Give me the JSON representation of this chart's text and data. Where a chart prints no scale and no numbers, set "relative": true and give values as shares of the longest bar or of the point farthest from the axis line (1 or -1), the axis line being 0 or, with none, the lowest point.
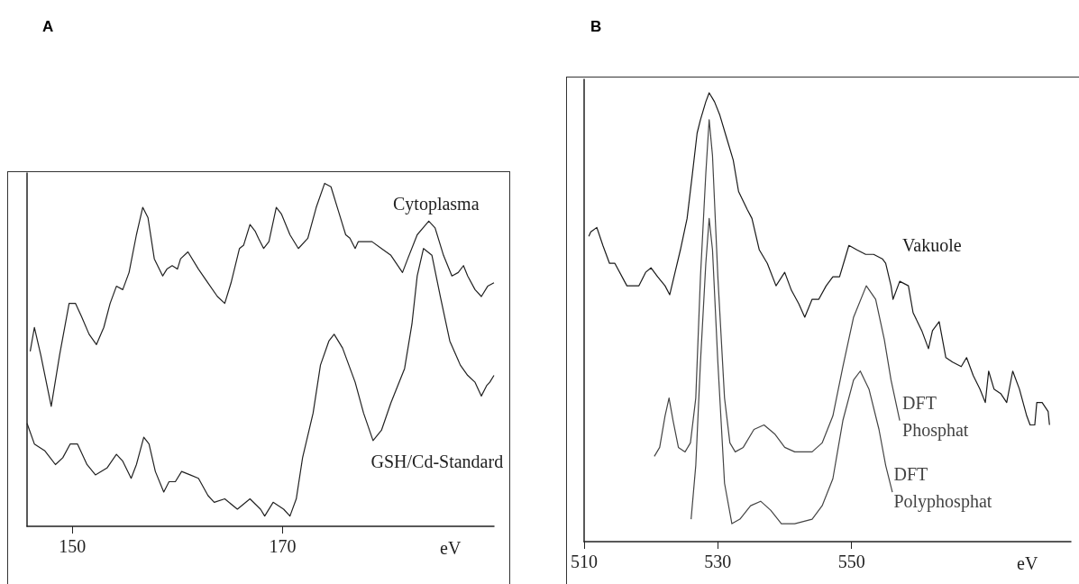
{
  "chart_data": [
    {
      "type": "line",
      "title": "A",
      "xlabel": "eV",
      "relative": true,
      "xlim": [
        145.7,
        190.1
      ],
      "xticks": [
        150,
        170
      ],
      "grid": false,
      "legend": false,
      "marker": "none",
      "series": [
        {
          "name": "Cytoplasma",
          "color": "#222222",
          "x": [
            146.0,
            146.4,
            147.0,
            148.0,
            148.8,
            149.7,
            150.3,
            150.9,
            151.6,
            152.3,
            153.0,
            153.6,
            154.2,
            154.8,
            155.4,
            156.1,
            156.7,
            157.2,
            157.8,
            158.6,
            159.0,
            159.5,
            160.0,
            160.3,
            161.0,
            162.0,
            162.9,
            163.8,
            164.5,
            165.1,
            165.9,
            166.3,
            166.9,
            167.4,
            167.7,
            168.2,
            168.7,
            169.4,
            169.9,
            170.7,
            171.5,
            172.4,
            173.2,
            174.0,
            174.6,
            175.3,
            176.0,
            176.4,
            176.9,
            177.2,
            178.5,
            179.4,
            180.3,
            181.4,
            181.9,
            182.8,
            183.9,
            184.5,
            185.3,
            186.1,
            186.7,
            187.2,
            187.6,
            188.3,
            188.9,
            189.5,
            190.1
          ],
          "values": [
            0.51,
            0.58,
            0.5,
            0.35,
            0.5,
            0.65,
            0.65,
            0.61,
            0.56,
            0.53,
            0.58,
            0.65,
            0.7,
            0.69,
            0.74,
            0.85,
            0.93,
            0.9,
            0.78,
            0.73,
            0.75,
            0.76,
            0.75,
            0.78,
            0.8,
            0.75,
            0.71,
            0.67,
            0.65,
            0.71,
            0.81,
            0.82,
            0.88,
            0.86,
            0.84,
            0.81,
            0.83,
            0.93,
            0.91,
            0.85,
            0.81,
            0.84,
            0.93,
            1.0,
            0.99,
            0.92,
            0.85,
            0.84,
            0.81,
            0.83,
            0.83,
            0.81,
            0.79,
            0.74,
            0.78,
            0.85,
            0.89,
            0.87,
            0.79,
            0.73,
            0.74,
            0.76,
            0.73,
            0.69,
            0.67,
            0.7,
            0.71
          ]
        },
        {
          "name": "GSH/Cd-Standard",
          "color": "#222222",
          "x": [
            145.7,
            146.4,
            147.4,
            148.4,
            149.1,
            149.8,
            150.5,
            151.4,
            152.2,
            153.3,
            154.2,
            154.8,
            155.6,
            156.1,
            156.8,
            157.3,
            157.9,
            158.7,
            159.2,
            159.8,
            160.4,
            161.2,
            162.0,
            162.9,
            163.5,
            164.5,
            165.7,
            166.9,
            167.9,
            168.3,
            169.1,
            170.1,
            170.7,
            171.3,
            171.9,
            172.9,
            173.6,
            174.4,
            174.9,
            175.7,
            176.9,
            177.7,
            178.6,
            179.4,
            180.3,
            181.6,
            182.3,
            182.8,
            183.4,
            184.2,
            185.0,
            185.9,
            186.9,
            187.6,
            188.3,
            188.9,
            189.4,
            189.7,
            190.1
          ],
          "values": [
            0.3,
            0.24,
            0.22,
            0.18,
            0.2,
            0.24,
            0.24,
            0.18,
            0.15,
            0.17,
            0.21,
            0.19,
            0.14,
            0.18,
            0.26,
            0.24,
            0.16,
            0.1,
            0.13,
            0.13,
            0.16,
            0.15,
            0.14,
            0.09,
            0.07,
            0.08,
            0.05,
            0.08,
            0.05,
            0.03,
            0.07,
            0.05,
            0.03,
            0.08,
            0.2,
            0.33,
            0.47,
            0.54,
            0.56,
            0.52,
            0.42,
            0.33,
            0.25,
            0.28,
            0.36,
            0.46,
            0.59,
            0.73,
            0.81,
            0.79,
            0.67,
            0.54,
            0.47,
            0.44,
            0.42,
            0.38,
            0.41,
            0.42,
            0.44
          ]
        }
      ]
    },
    {
      "type": "line",
      "title": "B",
      "xlabel": "eV",
      "relative": true,
      "xlim": [
        510,
        582.8
      ],
      "xticks": [
        510,
        530,
        550
      ],
      "grid": false,
      "legend": false,
      "marker": "none",
      "series": [
        {
          "name": "Vakuole",
          "color": "#1a1a1a",
          "x": [
            510.7,
            511.0,
            511.9,
            512.8,
            513.8,
            514.6,
            516.4,
            518.2,
            519.2,
            520.0,
            521.0,
            522.1,
            522.8,
            523.6,
            524.4,
            525.4,
            526.2,
            526.9,
            527.4,
            528.2,
            528.7,
            529.5,
            530.3,
            531.3,
            532.3,
            533.1,
            534.4,
            535.1,
            536.2,
            537.4,
            538.7,
            540.0,
            541.0,
            542.1,
            543.0,
            544.1,
            545.1,
            546.2,
            547.2,
            548.2,
            549.0,
            549.6,
            550.8,
            552.1,
            553.3,
            554.6,
            555.1,
            555.9,
            556.2,
            557.2,
            558.5,
            559.2,
            560.5,
            561.5,
            562.1,
            563.1,
            564.1,
            565.1,
            566.4,
            567.2,
            568.2,
            569.2,
            570.0,
            570.5,
            571.3,
            572.3,
            573.2,
            574.1,
            575.1,
            576.2,
            576.7,
            577.4,
            577.7,
            578.5,
            579.4,
            579.6
          ],
          "values": [
            0.68,
            0.69,
            0.7,
            0.66,
            0.62,
            0.62,
            0.57,
            0.57,
            0.6,
            0.61,
            0.59,
            0.57,
            0.55,
            0.6,
            0.65,
            0.72,
            0.82,
            0.91,
            0.94,
            0.98,
            1.0,
            0.98,
            0.95,
            0.9,
            0.85,
            0.78,
            0.74,
            0.72,
            0.65,
            0.62,
            0.57,
            0.6,
            0.56,
            0.53,
            0.5,
            0.54,
            0.54,
            0.57,
            0.59,
            0.59,
            0.63,
            0.66,
            0.65,
            0.64,
            0.64,
            0.63,
            0.62,
            0.57,
            0.54,
            0.58,
            0.57,
            0.51,
            0.47,
            0.43,
            0.47,
            0.49,
            0.41,
            0.4,
            0.39,
            0.41,
            0.37,
            0.34,
            0.31,
            0.38,
            0.34,
            0.33,
            0.31,
            0.38,
            0.34,
            0.28,
            0.26,
            0.26,
            0.31,
            0.31,
            0.29,
            0.26
          ]
        },
        {
          "name": "DFT Phosphat",
          "color": "#444444",
          "x": [
            520.5,
            521.3,
            522.1,
            522.7,
            523.3,
            524.1,
            525.1,
            525.9,
            526.7,
            527.4,
            528.2,
            528.7,
            529.2,
            530.0,
            531.0,
            531.8,
            532.6,
            533.8,
            535.4,
            536.9,
            538.5,
            540.0,
            541.5,
            544.1,
            545.6,
            547.2,
            548.7,
            550.3,
            552.2,
            553.6,
            554.9,
            555.9,
            557.2
          ],
          "values": [
            0.19,
            0.21,
            0.28,
            0.32,
            0.27,
            0.21,
            0.2,
            0.22,
            0.32,
            0.59,
            0.82,
            0.94,
            0.86,
            0.59,
            0.32,
            0.22,
            0.2,
            0.21,
            0.25,
            0.26,
            0.24,
            0.21,
            0.2,
            0.2,
            0.22,
            0.28,
            0.39,
            0.5,
            0.57,
            0.54,
            0.45,
            0.36,
            0.27
          ]
        },
        {
          "name": "DFT Polyphosphat",
          "color": "#444444",
          "x": [
            526.0,
            526.7,
            527.4,
            528.2,
            528.7,
            529.2,
            530.0,
            531.0,
            532.1,
            533.3,
            534.9,
            536.4,
            537.9,
            539.5,
            541.5,
            544.1,
            545.6,
            547.2,
            548.7,
            550.3,
            551.3,
            552.6,
            554.1,
            555.1,
            556.1
          ],
          "values": [
            0.05,
            0.17,
            0.4,
            0.62,
            0.72,
            0.65,
            0.4,
            0.13,
            0.04,
            0.05,
            0.08,
            0.09,
            0.07,
            0.04,
            0.04,
            0.05,
            0.08,
            0.14,
            0.27,
            0.36,
            0.38,
            0.34,
            0.25,
            0.17,
            0.11
          ]
        }
      ]
    }
  ]
}
